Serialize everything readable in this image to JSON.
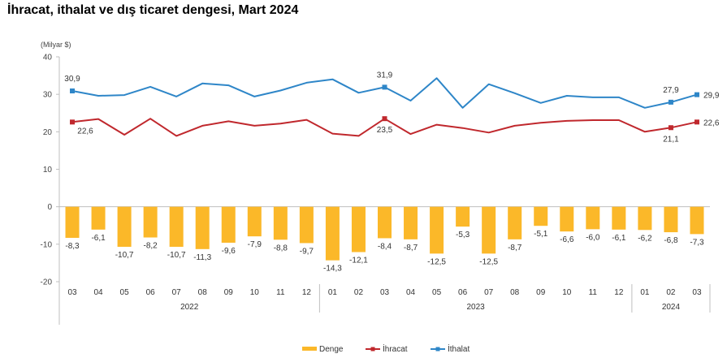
{
  "chart_data": {
    "type": "bar+line",
    "title": "İhracat, ithalat ve dış ticaret dengesi, Mart 2024",
    "ylabel": "(Milyar $)",
    "xlabel": "",
    "ylim": [
      -20,
      40
    ],
    "yticks": [
      40,
      30,
      20,
      10,
      0,
      -10,
      -20
    ],
    "ytick_labels": [
      "40",
      "30",
      "20",
      "10",
      "0",
      "-10",
      "-20"
    ],
    "grid": false,
    "categories": [
      "03",
      "04",
      "05",
      "06",
      "07",
      "08",
      "09",
      "10",
      "11",
      "12",
      "01",
      "02",
      "03",
      "04",
      "05",
      "06",
      "07",
      "08",
      "09",
      "10",
      "11",
      "12",
      "01",
      "02",
      "03"
    ],
    "year_groups": [
      {
        "label": "2022",
        "start": 0,
        "end": 9
      },
      {
        "label": "2023",
        "start": 10,
        "end": 21
      },
      {
        "label": "2024",
        "start": 22,
        "end": 24
      }
    ],
    "series": [
      {
        "name": "Denge",
        "type": "bar",
        "color": "#FBB829",
        "values": [
          -8.3,
          -6.1,
          -10.7,
          -8.2,
          -10.7,
          -11.3,
          -9.6,
          -7.9,
          -8.8,
          -9.7,
          -14.3,
          -12.1,
          -8.4,
          -8.7,
          -12.5,
          -5.3,
          -12.5,
          -8.7,
          -5.1,
          -6.6,
          -6.0,
          -6.1,
          -6.2,
          -6.8,
          -7.3
        ],
        "labels": [
          "-8,3",
          "-6,1",
          "-10,7",
          "-8,2",
          "-10,7",
          "-11,3",
          "-9,6",
          "-7,9",
          "-8,8",
          "-9,7",
          "-14,3",
          "-12,1",
          "-8,4",
          "-8,7",
          "-12,5",
          "-5,3",
          "-12,5",
          "-8,7",
          "-5,1",
          "-6,6",
          "-6,0",
          "-6,1",
          "-6,2",
          "-6,8",
          "-7,3"
        ]
      },
      {
        "name": "İhracat",
        "type": "line",
        "color": "#C0282D",
        "values": [
          22.6,
          23.4,
          19.2,
          23.5,
          18.9,
          21.6,
          22.8,
          21.6,
          22.2,
          23.2,
          19.5,
          18.9,
          23.5,
          19.4,
          21.9,
          21.0,
          19.8,
          21.6,
          22.4,
          22.9,
          23.1,
          23.1,
          20.0,
          21.1,
          22.6
        ],
        "markers": [
          0,
          12,
          23,
          24
        ],
        "point_labels": [
          {
            "index": 0,
            "text": "22,6"
          },
          {
            "index": 12,
            "text": "23,5"
          },
          {
            "index": 23,
            "text": "21,1"
          },
          {
            "index": 24,
            "text": "22,6"
          }
        ]
      },
      {
        "name": "İthalat",
        "type": "line",
        "color": "#2E86C8",
        "values": [
          30.9,
          29.6,
          29.8,
          32.0,
          29.4,
          32.9,
          32.4,
          29.4,
          31.0,
          33.1,
          34.0,
          30.4,
          31.9,
          28.3,
          34.3,
          26.4,
          32.7,
          30.3,
          27.7,
          29.6,
          29.2,
          29.2,
          26.4,
          27.9,
          29.9
        ],
        "markers": [
          0,
          12,
          23,
          24
        ],
        "point_labels": [
          {
            "index": 0,
            "text": "30,9"
          },
          {
            "index": 12,
            "text": "31,9"
          },
          {
            "index": 23,
            "text": "27,9"
          },
          {
            "index": 24,
            "text": "29,9"
          }
        ]
      }
    ],
    "legend": {
      "position": "bottom-center",
      "entries": [
        "Denge",
        "İhracat",
        "İthalat"
      ]
    }
  }
}
